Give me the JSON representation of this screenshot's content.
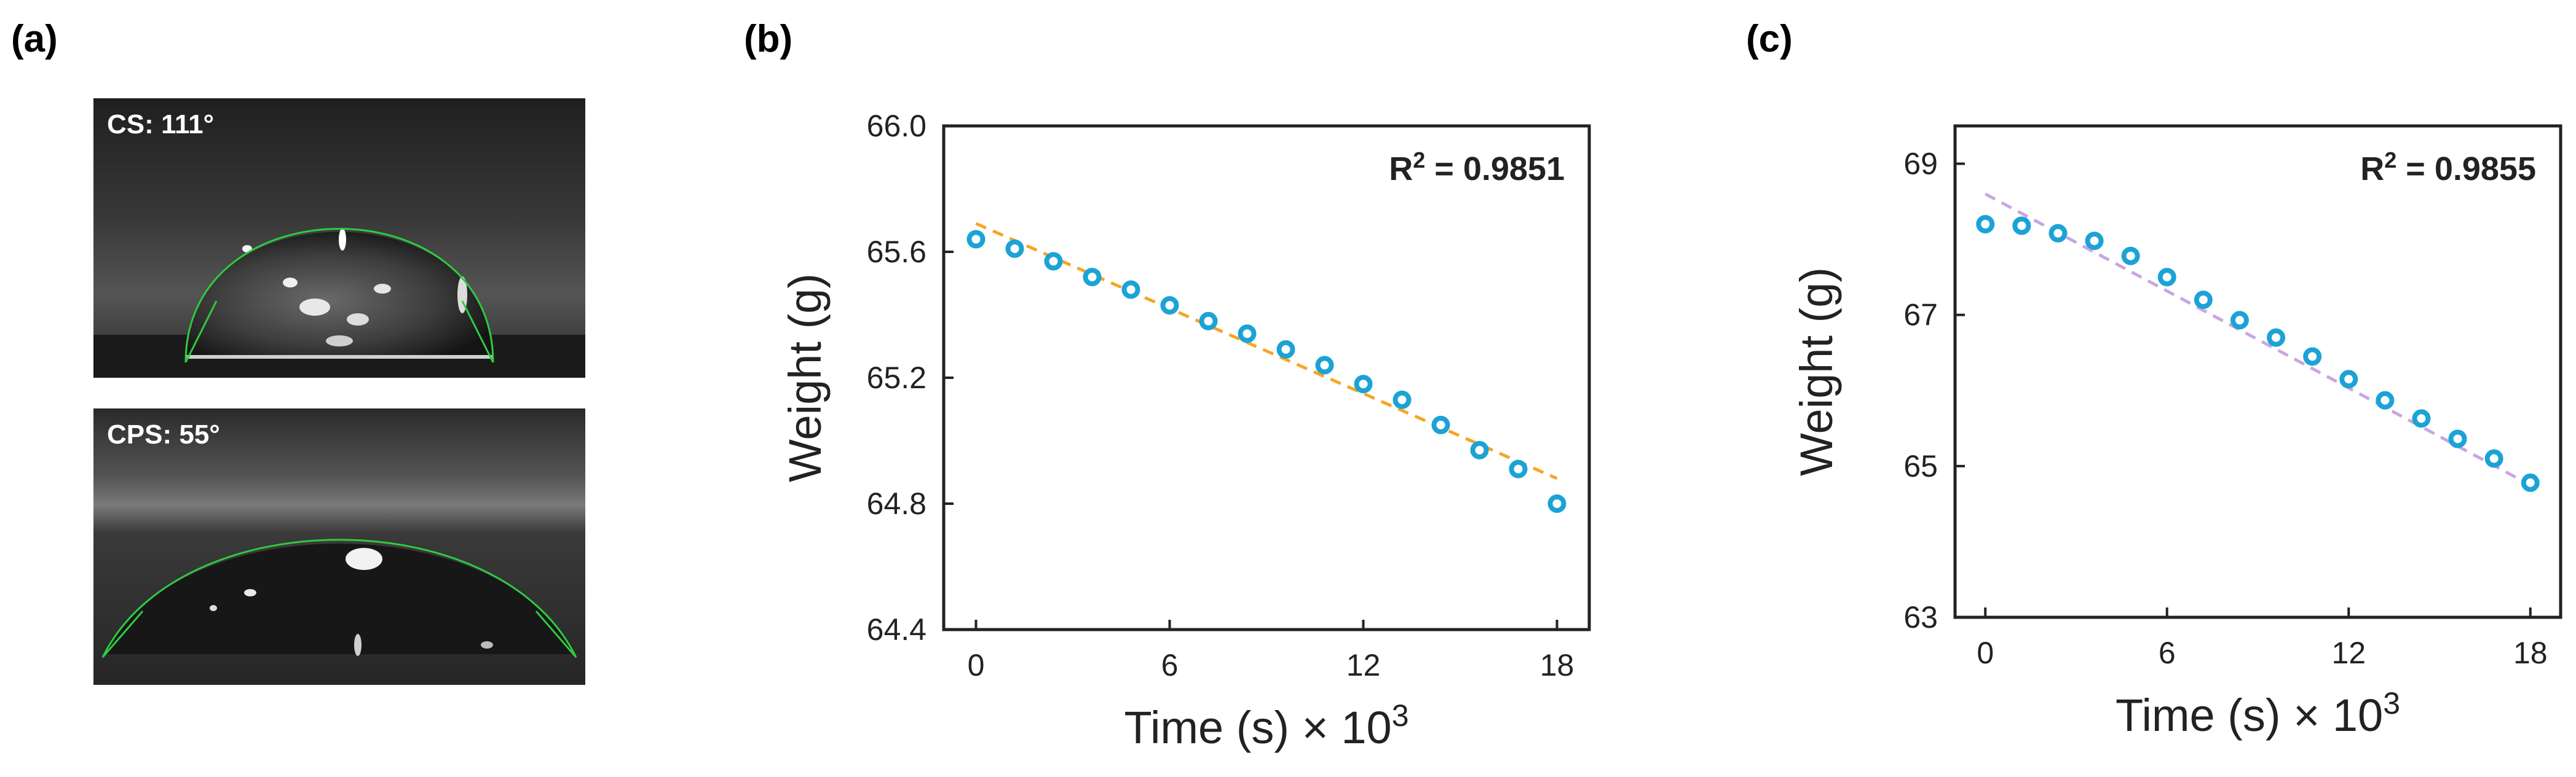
{
  "panels": {
    "a": {
      "label": "(a)",
      "photos": [
        {
          "caption": "CS: 111°",
          "contact_angle_deg": 111
        },
        {
          "caption": "CPS: 55°",
          "contact_angle_deg": 55
        }
      ]
    },
    "b": {
      "label": "(b)"
    },
    "c": {
      "label": "(c)"
    }
  },
  "colors": {
    "marker": "#1ba3d6",
    "fit_b": "#f5a623",
    "fit_c": "#c9a6e0",
    "contact_line": "#2ecc40"
  },
  "chart_data": [
    {
      "type": "scatter",
      "xlabel": "Time (s) × 10",
      "xlabel_sup": "3",
      "ylabel": "Weight (g)",
      "annotation": "R",
      "annotation_sup": "2",
      "annotation_value": " = 0.9851",
      "xlim": [
        -1,
        19
      ],
      "ylim": [
        64.4,
        66.0
      ],
      "xticks": [
        0,
        6,
        12,
        18
      ],
      "xtick_labels": [
        "0",
        "6",
        "12",
        "18"
      ],
      "yticks": [
        64.4,
        64.8,
        65.2,
        65.6,
        66.0
      ],
      "ytick_labels": [
        "64.4",
        "64.8",
        "65.2",
        "65.6",
        "66.0"
      ],
      "points": {
        "x": [
          0,
          1.2,
          2.4,
          3.6,
          4.8,
          6.0,
          7.2,
          8.4,
          9.6,
          10.8,
          12.0,
          13.2,
          14.4,
          15.6,
          16.8,
          18.0
        ],
        "y": [
          65.64,
          65.61,
          65.57,
          65.52,
          65.48,
          65.43,
          65.38,
          65.34,
          65.29,
          65.24,
          65.18,
          65.13,
          65.05,
          64.97,
          64.91,
          64.8
        ]
      },
      "fit": {
        "x": [
          0,
          18
        ],
        "y": [
          65.69,
          64.88
        ],
        "style": "dashed"
      }
    },
    {
      "type": "scatter",
      "xlabel": "Time (s) × 10",
      "xlabel_sup": "3",
      "ylabel": "Weight (g)",
      "annotation": "R",
      "annotation_sup": "2",
      "annotation_value": " = 0.9855",
      "xlim": [
        -1,
        19
      ],
      "ylim": [
        63,
        69.5
      ],
      "xticks": [
        0,
        6,
        12,
        18
      ],
      "xtick_labels": [
        "0",
        "6",
        "12",
        "18"
      ],
      "yticks": [
        63,
        65,
        67,
        69
      ],
      "ytick_labels": [
        "63",
        "65",
        "67",
        "69"
      ],
      "points": {
        "x": [
          0,
          1.2,
          2.4,
          3.6,
          4.8,
          6.0,
          7.2,
          8.4,
          9.6,
          10.8,
          12.0,
          13.2,
          14.4,
          15.6,
          16.8,
          18.0
        ],
        "y": [
          68.2,
          68.18,
          68.08,
          67.98,
          67.78,
          67.5,
          67.2,
          66.93,
          66.7,
          66.45,
          66.15,
          65.87,
          65.63,
          65.36,
          65.1,
          64.78
        ]
      },
      "fit": {
        "x": [
          0,
          18
        ],
        "y": [
          68.6,
          64.75
        ],
        "style": "dashed"
      }
    }
  ]
}
